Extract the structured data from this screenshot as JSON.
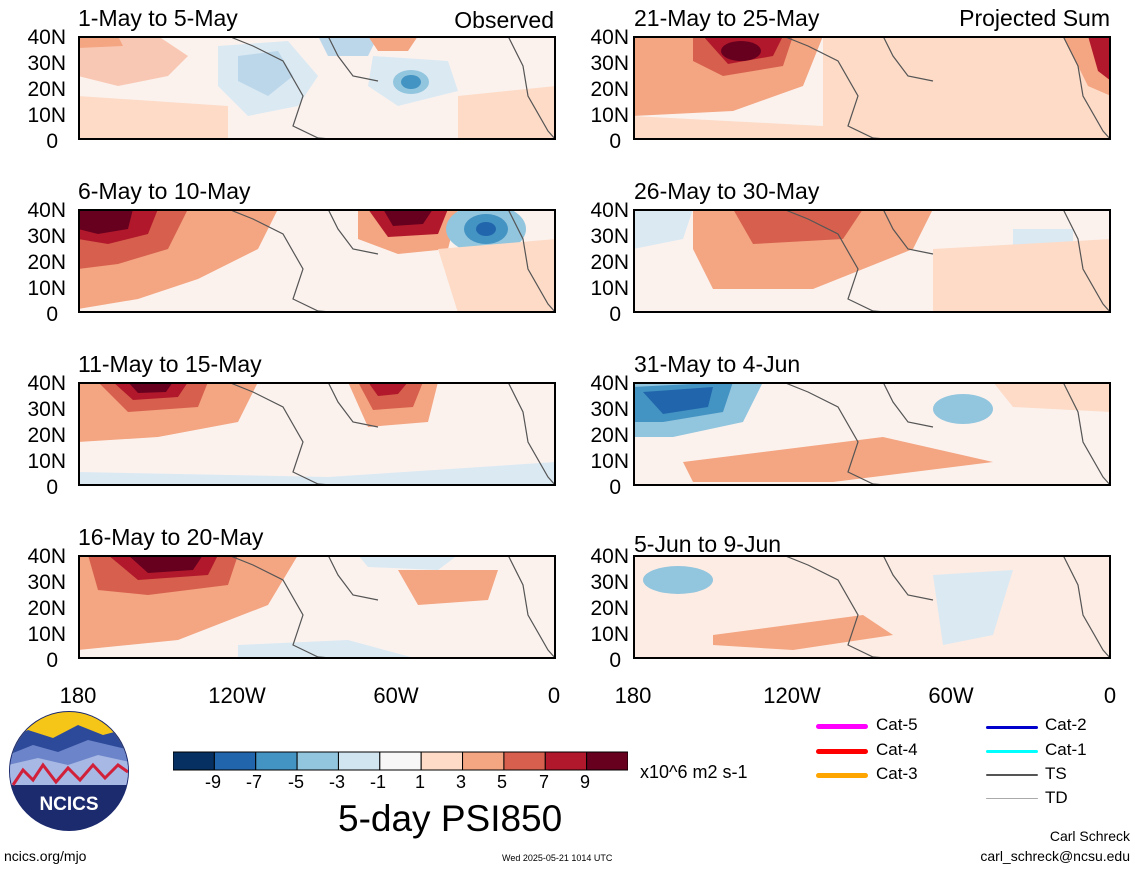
{
  "panels": [
    {
      "title": "1-May to 5-May",
      "corner": "Observed"
    },
    {
      "title": "6-May to 10-May",
      "corner": ""
    },
    {
      "title": "11-May to 15-May",
      "corner": ""
    },
    {
      "title": "16-May to 20-May",
      "corner": ""
    },
    {
      "title": "21-May to 25-May",
      "corner": "Projected Sum"
    },
    {
      "title": "26-May to 30-May",
      "corner": ""
    },
    {
      "title": "31-May to 4-Jun",
      "corner": ""
    },
    {
      "title": "5-Jun to 9-Jun",
      "corner": ""
    }
  ],
  "axes": {
    "lat_labels": [
      "40N",
      "30N",
      "20N",
      "10N",
      "0"
    ],
    "lon_labels": [
      "180",
      "120W",
      "60W",
      "0"
    ]
  },
  "colorbar": {
    "tick_labels": [
      "-9",
      "-7",
      "-5",
      "-3",
      "-1",
      "1",
      "3",
      "5",
      "7",
      "9"
    ],
    "colors": [
      "#053061",
      "#2166ac",
      "#4393c3",
      "#92c5de",
      "#d1e5f0",
      "#f7f7f7",
      "#fddbc7",
      "#f4a582",
      "#d6604d",
      "#b2182b",
      "#67001f"
    ],
    "units": "x10^6 m2 s-1"
  },
  "main_title": "5-day PSI850",
  "storm_legend": [
    {
      "label": "Cat-5",
      "color": "#ff00ff"
    },
    {
      "label": "Cat-4",
      "color": "#ff0000"
    },
    {
      "label": "Cat-3",
      "color": "#ffa500"
    },
    {
      "label": "Cat-2",
      "color": "#0000cc"
    },
    {
      "label": "Cat-1",
      "color": "#00ffff"
    },
    {
      "label": "TS",
      "color": "#555555"
    },
    {
      "label": "TD",
      "color": "#aaaaaa"
    }
  ],
  "footer": {
    "logo_text": "NCICS",
    "url": "ncics.org/mjo",
    "timestamp": "Wed 2025-05-21 1014 UTC",
    "author": "Carl Schreck",
    "email": "carl_schreck@ncsu.edu"
  }
}
